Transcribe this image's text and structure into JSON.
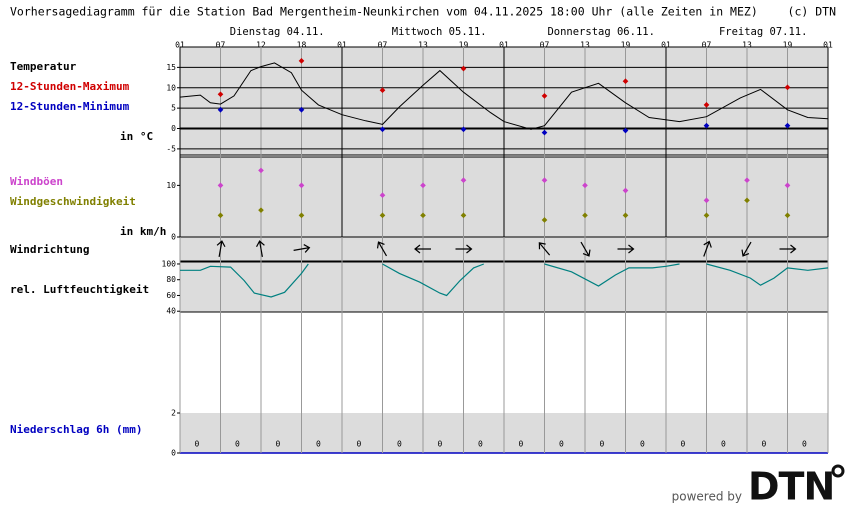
{
  "header": {
    "title": "Vorhersagediagramm für die Station Bad Mergentheim-Neunkirchen vom 04.11.2025 18:00 Uhr (alle Zeiten in MEZ)",
    "copyright": "(c) DTN"
  },
  "footer": {
    "powered_by": "powered by",
    "logo": "DTN"
  },
  "chart_data": [
    {
      "type": "line",
      "title": "Temperatur",
      "ylabel": "in °C",
      "days": [
        "Dienstag 04.11.",
        "Mittwoch 05.11.",
        "Donnerstag 06.11.",
        "Freitag 07.11."
      ],
      "xlim": [
        0,
        96
      ],
      "xticks": [
        {
          "value": 0,
          "label": "01"
        },
        {
          "value": 6,
          "label": "07"
        },
        12,
        18,
        {
          "value": 24,
          "label": "01"
        },
        {
          "value": 30,
          "label": "07"
        },
        {
          "value": 36,
          "label": "13"
        },
        {
          "value": 42,
          "label": "19"
        },
        {
          "value": 48,
          "label": "01"
        },
        {
          "value": 54,
          "label": "07"
        },
        {
          "value": 60,
          "label": "13"
        },
        {
          "value": 66,
          "label": "19"
        },
        {
          "value": 72,
          "label": "01"
        },
        {
          "value": 78,
          "label": "07"
        },
        {
          "value": 84,
          "label": "13"
        },
        {
          "value": 90,
          "label": "19"
        },
        {
          "value": 96,
          "label": "01"
        }
      ],
      "ylim": [
        -6.5,
        20
      ],
      "yticks": [
        15,
        10,
        5,
        0,
        -5
      ],
      "grid": true,
      "series": [
        {
          "mark": "line",
          "color": "#000000",
          "x": [
            0,
            3,
            4.5,
            6,
            8,
            10.5,
            12,
            14,
            16.5,
            18,
            20.5,
            24,
            27.5,
            30,
            32.5,
            36,
            38.5,
            42,
            46,
            48,
            52,
            54,
            58,
            62,
            66,
            69.5,
            74,
            78,
            83,
            86,
            90,
            93,
            96
          ],
          "values": [
            7.7,
            8.2,
            6.3,
            6,
            8,
            14.2,
            15.2,
            16.1,
            13.7,
            9.4,
            5.8,
            3.4,
            1.9,
            1,
            5.3,
            10.6,
            14.2,
            8.9,
            3.9,
            1.7,
            -0.2,
            0.7,
            8.9,
            11.1,
            6.3,
            2.7,
            1.7,
            2.9,
            7.5,
            9.6,
            4.6,
            2.7,
            2.4
          ]
        },
        {
          "mark": "diamond",
          "name": "12-Stunden-Maximum",
          "color": "#d00000",
          "x": [
            6,
            18,
            30,
            42,
            54,
            66,
            78,
            90
          ],
          "values": [
            8.4,
            16.6,
            9.4,
            14.7,
            8,
            11.6,
            5.8,
            10.1
          ]
        },
        {
          "mark": "diamond",
          "name": "12-Stunden-Minimum",
          "color": "#0000c0",
          "x": [
            6,
            18,
            30,
            42,
            54,
            66,
            78,
            90
          ],
          "values": [
            4.6,
            4.6,
            -0.2,
            -0.2,
            -1,
            -0.5,
            0.7,
            0.7
          ]
        }
      ]
    },
    {
      "type": "scatter",
      "ylabel": "in km/h",
      "xlim": [
        0,
        96
      ],
      "ylim": [
        0,
        15.5
      ],
      "yticks": [
        10,
        0
      ],
      "grid": false,
      "series": [
        {
          "mark": "diamond",
          "name": "Windböen",
          "color": "#cc44cc",
          "x": [
            6,
            12,
            18,
            30,
            36,
            42,
            54,
            60,
            66,
            78,
            84,
            90
          ],
          "values": [
            10,
            12.9,
            10,
            8.1,
            10,
            11,
            11,
            10,
            9,
            7.1,
            11,
            10
          ]
        },
        {
          "mark": "diamond",
          "name": "Windgeschwindigkeit",
          "color": "#808000",
          "x": [
            6,
            12,
            18,
            30,
            36,
            42,
            54,
            60,
            66,
            78,
            84,
            90
          ],
          "values": [
            4.2,
            5.2,
            4.2,
            4.2,
            4.2,
            4.2,
            3.3,
            4.2,
            4.2,
            4.2,
            7.1,
            4.2
          ]
        }
      ]
    },
    {
      "type": "arrows",
      "title": "Windrichtung",
      "xlim": [
        0,
        96
      ],
      "x": [
        6,
        12,
        18,
        30,
        36,
        42,
        54,
        60,
        66,
        78,
        84,
        90
      ],
      "values": [
        190,
        170,
        260,
        150,
        90,
        270,
        140,
        330,
        270,
        200,
        30,
        270
      ]
    },
    {
      "type": "line",
      "title": "rel. Luftfeuchtigkeit",
      "color": "#008080",
      "xlim": [
        0,
        96
      ],
      "ylim": [
        39,
        102.5
      ],
      "yticks": [
        100,
        80,
        60,
        40
      ],
      "grid": false,
      "x": [
        0,
        3,
        4.5,
        7.5,
        9.5,
        11,
        13.5,
        15.5,
        18,
        19,
        24,
        30,
        32.5,
        35.5,
        38.5,
        39.5,
        41.5,
        43.5,
        45,
        50,
        54,
        58,
        62,
        64.5,
        66.5,
        70,
        72,
        74,
        76,
        78,
        81.5,
        84.5,
        86,
        88,
        90,
        93,
        96
      ],
      "values": [
        92,
        92,
        97,
        96,
        79,
        63,
        58,
        64,
        88,
        100,
        null,
        100,
        88,
        77,
        63,
        60,
        79,
        95,
        100,
        null,
        100,
        90,
        72,
        86,
        95,
        95,
        97,
        100,
        null,
        100,
        92,
        82,
        73,
        82,
        95,
        92,
        95
      ]
    },
    {
      "type": "bar",
      "title": "Niederschlag 6h (mm)",
      "title_color": "#0000c0",
      "color": "#0000c0",
      "xlim": [
        0,
        96
      ],
      "ylim": [
        0,
        7
      ],
      "yticks": [
        2,
        0
      ],
      "x": [
        2.5,
        8.5,
        14.5,
        20.5,
        26.5,
        32.5,
        38.5,
        44.5,
        50.5,
        56.5,
        62.5,
        68.5,
        74.5,
        80.5,
        86.5,
        92.5
      ],
      "values": [
        0,
        0,
        0,
        0,
        0,
        0,
        0,
        0,
        0,
        0,
        0,
        0,
        0,
        0,
        0,
        0
      ]
    }
  ]
}
